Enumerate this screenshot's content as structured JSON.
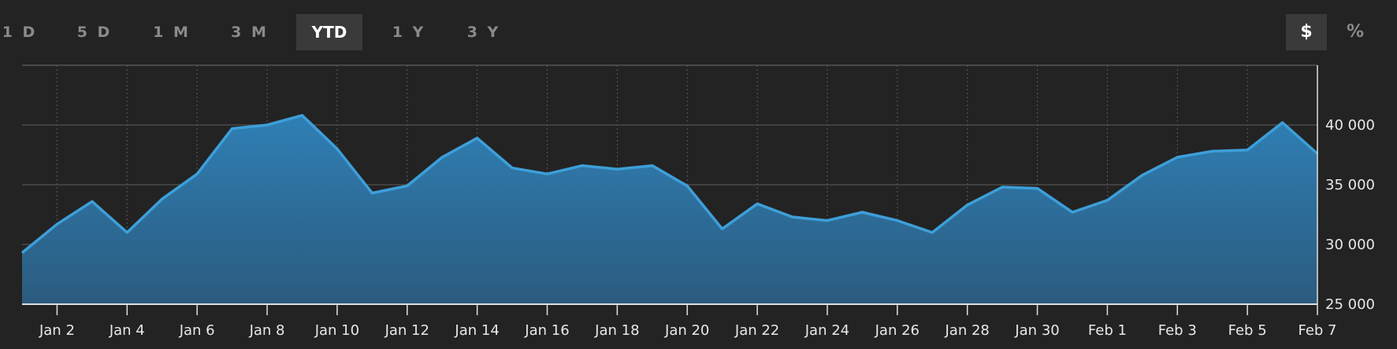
{
  "range_buttons": [
    "1 D",
    "5 D",
    "1 M",
    "3 M",
    "YTD",
    "1 Y",
    "3 Y"
  ],
  "active_range": "YTD",
  "unit_buttons": [
    "$",
    "%"
  ],
  "active_unit": "$",
  "colors": {
    "line": "#3d9fd9",
    "fill_top": "#2f7fb5",
    "fill_bottom": "#2b5b7e",
    "background": "#232323"
  },
  "chart_data": {
    "type": "area",
    "x": [
      "Jan 1",
      "Jan 2",
      "Jan 3",
      "Jan 4",
      "Jan 5",
      "Jan 6",
      "Jan 7",
      "Jan 8",
      "Jan 9",
      "Jan 10",
      "Jan 11",
      "Jan 12",
      "Jan 13",
      "Jan 14",
      "Jan 15",
      "Jan 16",
      "Jan 17",
      "Jan 18",
      "Jan 19",
      "Jan 20",
      "Jan 21",
      "Jan 22",
      "Jan 23",
      "Jan 24",
      "Jan 25",
      "Jan 26",
      "Jan 27",
      "Jan 28",
      "Jan 29",
      "Jan 30",
      "Jan 31",
      "Feb 1",
      "Feb 2",
      "Feb 3",
      "Feb 4",
      "Feb 5",
      "Feb 6",
      "Feb 7"
    ],
    "series": [
      {
        "values": [
          29300,
          31700,
          33600,
          31000,
          33800,
          35900,
          39700,
          40000,
          40800,
          38000,
          34300,
          34900,
          37300,
          38900,
          36400,
          35900,
          36600,
          36300,
          36600,
          34900,
          31300,
          33400,
          32300,
          32000,
          32700,
          32000,
          31000,
          33300,
          34800,
          34700,
          32700,
          33700,
          35800,
          37300,
          37800,
          37900,
          40200,
          37600
        ]
      }
    ],
    "x_tick_labels": [
      "Jan 2",
      "Jan 4",
      "Jan 6",
      "Jan 8",
      "Jan 10",
      "Jan 12",
      "Jan 14",
      "Jan 16",
      "Jan 18",
      "Jan 20",
      "Jan 22",
      "Jan 24",
      "Jan 26",
      "Jan 28",
      "Jan 30",
      "Feb 1",
      "Feb 3",
      "Feb 5",
      "Feb 7"
    ],
    "y_ticks": [
      25000,
      30000,
      35000,
      40000
    ],
    "y_tick_labels": [
      "25 000",
      "30 000",
      "35 000",
      "40 000"
    ],
    "ylim": [
      25000,
      45000
    ],
    "grid": true,
    "y_axis_side": "right"
  }
}
